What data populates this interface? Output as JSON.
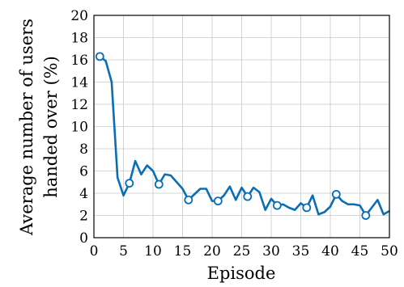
{
  "chart_data": {
    "type": "line",
    "xlabel": "Episode",
    "ylabel_lines": [
      "Average number of users",
      "handed over  (%)"
    ],
    "xlim": [
      0,
      50
    ],
    "ylim": [
      0,
      20
    ],
    "xticks": [
      0,
      5,
      10,
      15,
      20,
      25,
      30,
      35,
      40,
      45,
      50
    ],
    "yticks": [
      0,
      2,
      4,
      6,
      8,
      10,
      12,
      14,
      16,
      18,
      20
    ],
    "grid": true,
    "series": [
      {
        "color": "#0a6eb4",
        "marker": "open-circle",
        "marker_every": 5,
        "x": [
          1,
          2,
          3,
          4,
          5,
          6,
          7,
          8,
          9,
          10,
          11,
          12,
          13,
          14,
          15,
          16,
          17,
          18,
          19,
          20,
          21,
          22,
          23,
          24,
          25,
          26,
          27,
          28,
          29,
          30,
          31,
          32,
          33,
          34,
          35,
          36,
          37,
          38,
          39,
          40,
          41,
          42,
          43,
          44,
          45,
          46,
          47,
          48,
          49,
          50
        ],
        "values": [
          16.3,
          15.9,
          14.0,
          5.4,
          3.8,
          4.9,
          6.9,
          5.7,
          6.5,
          6.0,
          4.8,
          5.7,
          5.6,
          5.0,
          4.4,
          3.4,
          3.9,
          4.4,
          4.4,
          3.3,
          3.3,
          3.8,
          4.6,
          3.4,
          4.5,
          3.7,
          4.5,
          4.1,
          2.5,
          3.5,
          2.9,
          3.0,
          2.7,
          2.5,
          3.1,
          2.7,
          3.8,
          2.1,
          2.3,
          2.8,
          3.9,
          3.3,
          3.0,
          3.0,
          2.9,
          2.0,
          2.7,
          3.4,
          2.1,
          2.4
        ]
      }
    ]
  }
}
